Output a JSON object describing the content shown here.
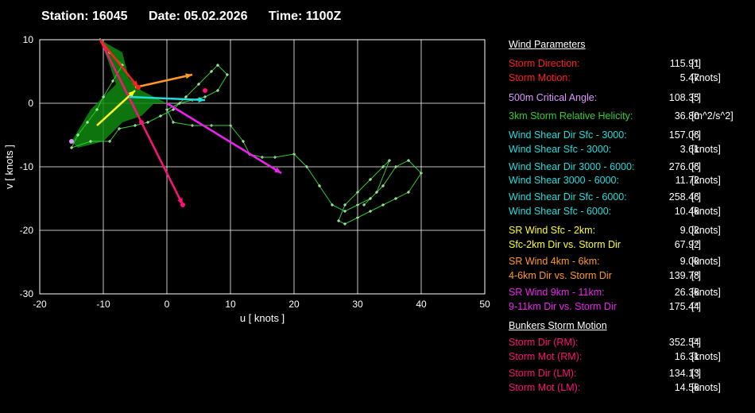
{
  "header": {
    "station": "Station: 16045",
    "date": "Date: 05.02.2026",
    "time": "Time: 1100Z"
  },
  "colors": {
    "grid": "#ffffff",
    "trace": "#33cc33",
    "fill": "#118811",
    "storm": "#ff2020",
    "cyan": "#22dddd",
    "yellow": "#ffff22",
    "orange": "#ff9922",
    "magenta": "#ee22ee",
    "pink": "#ff1177",
    "critical": "#dd99ff"
  },
  "chart_data": {
    "type": "scatter",
    "xlabel": "u  [ knots ]",
    "ylabel": "v  [ knots ]",
    "xlim": [
      -20,
      50
    ],
    "ylim": [
      -30,
      10
    ],
    "xticks": [
      -20,
      -10,
      0,
      10,
      20,
      30,
      40,
      50
    ],
    "yticks": [
      -30,
      -20,
      -10,
      0,
      10
    ],
    "grid": true,
    "hodograph": [
      [
        -10.5,
        10
      ],
      [
        -9,
        8
      ],
      [
        -7,
        6
      ],
      [
        -8.5,
        3.5
      ],
      [
        -10,
        1
      ],
      [
        -11,
        -1
      ],
      [
        -12.5,
        -3
      ],
      [
        -14,
        -5
      ],
      [
        -15,
        -7
      ],
      [
        -12,
        -6
      ],
      [
        -9,
        -6
      ],
      [
        -7.5,
        -4
      ],
      [
        -5,
        -3.5
      ],
      [
        -3,
        -3
      ],
      [
        -1,
        -2
      ],
      [
        1,
        -1
      ],
      [
        3,
        1
      ],
      [
        5,
        3
      ],
      [
        7,
        5
      ],
      [
        8,
        6
      ],
      [
        9.5,
        4.5
      ],
      [
        8,
        2
      ],
      [
        6,
        1
      ],
      [
        4,
        0.5
      ],
      [
        2,
        0
      ],
      [
        0,
        -1
      ],
      [
        1,
        -3
      ],
      [
        4,
        -3.5
      ],
      [
        7,
        -3.5
      ],
      [
        10,
        -3.5
      ],
      [
        12,
        -6
      ],
      [
        13,
        -8
      ],
      [
        15,
        -8.5
      ],
      [
        17,
        -8.5
      ],
      [
        20,
        -8
      ],
      [
        22,
        -10
      ],
      [
        24,
        -13
      ],
      [
        26,
        -16
      ],
      [
        28,
        -17
      ],
      [
        30,
        -16
      ],
      [
        32,
        -15
      ],
      [
        34,
        -13
      ],
      [
        36,
        -10
      ],
      [
        38,
        -9
      ],
      [
        40,
        -11
      ],
      [
        38,
        -14
      ],
      [
        36,
        -15
      ],
      [
        34,
        -16
      ],
      [
        32,
        -17
      ],
      [
        30,
        -18
      ],
      [
        28,
        -19
      ],
      [
        27,
        -18.5
      ],
      [
        28,
        -16
      ],
      [
        30,
        -14
      ],
      [
        32,
        -12
      ],
      [
        34,
        -10
      ],
      [
        35,
        -9
      ],
      [
        33,
        -14
      ],
      [
        31,
        -16
      ]
    ],
    "hodograph_fill": [
      [
        -10.5,
        10
      ],
      [
        -9,
        6
      ],
      [
        -8,
        3
      ],
      [
        -12,
        -1
      ],
      [
        -15,
        -6
      ],
      [
        -14,
        -7
      ],
      [
        -10,
        -6
      ],
      [
        -7,
        -3
      ],
      [
        -4,
        -2
      ],
      [
        -2,
        0
      ],
      [
        0,
        0
      ],
      [
        -4,
        2
      ],
      [
        -6,
        4
      ],
      [
        -7,
        8
      ]
    ],
    "vectors": [
      {
        "color": "pink",
        "from": [
          -10.5,
          10
        ],
        "to": [
          2.5,
          -16
        ]
      },
      {
        "color": "magenta",
        "from": [
          0,
          0
        ],
        "to": [
          18,
          -11
        ]
      },
      {
        "color": "orange",
        "from": [
          -5,
          2.5
        ],
        "to": [
          4,
          4.5
        ]
      },
      {
        "color": "yellow",
        "from": [
          -11,
          -3.5
        ],
        "to": [
          -5,
          2
        ]
      },
      {
        "color": "cyan",
        "from": [
          -6,
          1
        ],
        "to": [
          6,
          0.5
        ]
      },
      {
        "color": "storm",
        "from": [
          -10.5,
          10
        ],
        "to": [
          -4.5,
          2.5
        ]
      }
    ],
    "markers": [
      {
        "color": "storm",
        "at": [
          -4.5,
          2.5
        ]
      },
      {
        "color": "pink",
        "at": [
          2.5,
          -16
        ]
      },
      {
        "color": "pink",
        "at": [
          -4,
          -3
        ]
      },
      {
        "color": "pink",
        "at": [
          6,
          2
        ]
      },
      {
        "color": "critical",
        "at": [
          -15,
          -6
        ]
      }
    ]
  },
  "params": {
    "wind_title": "Wind Parameters",
    "bunkers_title": "Bunkers Storm Motion",
    "rows": [
      {
        "label": "Storm Direction:",
        "value": "115.91",
        "unit": "[°]",
        "color": "#ff2020"
      },
      {
        "label": "Storm Motion:",
        "value": "5.47",
        "unit": "[knots]",
        "color": "#ff2020"
      },
      {
        "label": "500m Critical Angle:",
        "value": "108.35",
        "unit": "[°]",
        "color": "#dd99ff"
      },
      {
        "label": "3km Storm Relative Helicity:",
        "value": "36.80",
        "unit": "[m^2/s^2]",
        "color": "#33cc33"
      },
      {
        "label": "Wind Shear Dir Sfc - 3000:",
        "value": "157.06",
        "unit": "[°]",
        "color": "#22dddd"
      },
      {
        "label": "Wind Shear Sfc - 3000:",
        "value": "3.61",
        "unit": "[knots]",
        "color": "#22dddd"
      },
      {
        "label": "Wind Shear Dir 3000 - 6000:",
        "value": "276.06",
        "unit": "[°]",
        "color": "#22dddd"
      },
      {
        "label": "Wind Shear 3000 - 6000:",
        "value": "11.72",
        "unit": "[knots]",
        "color": "#22dddd"
      },
      {
        "label": "Wind Shear Dir Sfc - 6000:",
        "value": "258.46",
        "unit": "[°]",
        "color": "#22dddd"
      },
      {
        "label": "Wind Shear Sfc - 6000:",
        "value": "10.46",
        "unit": "[knots]",
        "color": "#22dddd"
      },
      {
        "label": "SR Wind Sfc - 2km:",
        "value": "9.02",
        "unit": "[knots]",
        "color": "#ffff22"
      },
      {
        "label": "Sfc-2km Dir vs. Storm Dir",
        "value": "67.92",
        "unit": "[°]",
        "color": "#ffff22"
      },
      {
        "label": "SR Wind 4km - 6km:",
        "value": "9.00",
        "unit": "[knots]",
        "color": "#ff9922"
      },
      {
        "label": "4-6km Dir vs. Storm Dir",
        "value": "139.78",
        "unit": "[°]",
        "color": "#ff9922"
      },
      {
        "label": "SR Wind 9km - 11km:",
        "value": "26.36",
        "unit": "[knots]",
        "color": "#ee22ee"
      },
      {
        "label": "9-11km Dir vs. Storm Dir",
        "value": "175.44",
        "unit": "[°]",
        "color": "#ee22ee"
      }
    ],
    "bunkers": [
      {
        "label": "Storm Dir (RM):",
        "value": "352.54",
        "unit": "[°]",
        "color": "#ff1177"
      },
      {
        "label": "Storm Mot (RM):",
        "value": "16.31",
        "unit": "[knots]",
        "color": "#ff1177"
      },
      {
        "label": "Storm Dir (LM):",
        "value": "134.13",
        "unit": "[°]",
        "color": "#ff1177"
      },
      {
        "label": "Storm Mot (LM):",
        "value": "14.56",
        "unit": "[knots]",
        "color": "#ff1177"
      }
    ]
  }
}
